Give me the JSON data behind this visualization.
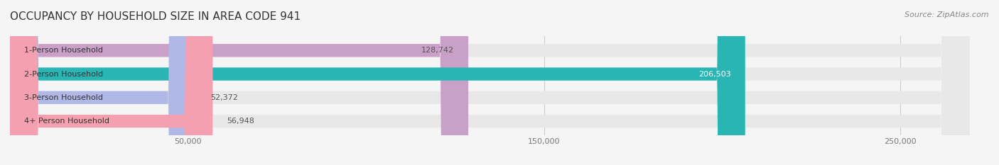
{
  "title": "OCCUPANCY BY HOUSEHOLD SIZE IN AREA CODE 941",
  "source": "Source: ZipAtlas.com",
  "categories": [
    "1-Person Household",
    "2-Person Household",
    "3-Person Household",
    "4+ Person Household"
  ],
  "values": [
    128742,
    206503,
    52372,
    56948
  ],
  "bar_colors": [
    "#c9a0c8",
    "#2ab5b5",
    "#b0b8e8",
    "#f4a0b0"
  ],
  "label_colors": [
    "#555555",
    "#ffffff",
    "#555555",
    "#555555"
  ],
  "xlim": [
    0,
    275000
  ],
  "xticks": [
    50000,
    150000,
    250000
  ],
  "xtick_labels": [
    "50,000",
    "150,000",
    "250,000"
  ],
  "background_color": "#f5f5f5",
  "bar_background_color": "#e8e8e8",
  "title_fontsize": 11,
  "source_fontsize": 8,
  "bar_label_fontsize": 8,
  "category_fontsize": 8,
  "bar_height": 0.55
}
